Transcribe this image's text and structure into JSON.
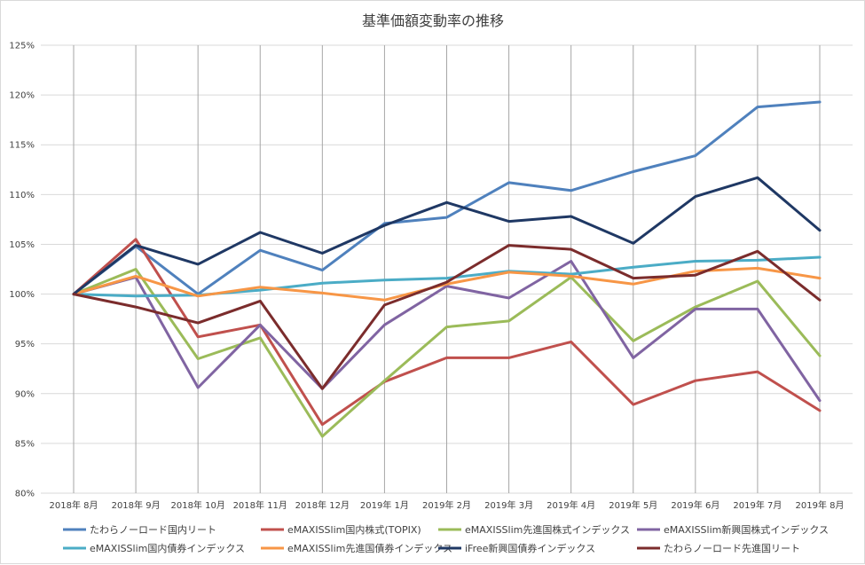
{
  "chart_data": {
    "type": "line",
    "title": "基準価額変動率の推移",
    "xlabel": "",
    "ylabel": "",
    "ylim": [
      80,
      125
    ],
    "y_ticks": [
      "80%",
      "85%",
      "90%",
      "95%",
      "100%",
      "105%",
      "110%",
      "115%",
      "120%",
      "125%"
    ],
    "categories": [
      "2018年 8月",
      "2018年 9月",
      "2018年 10月",
      "2018年 11月",
      "2018年 12月",
      "2019年 1月",
      "2019年 2月",
      "2019年 3月",
      "2019年 4月",
      "2019年 5月",
      "2019年 6月",
      "2019年 7月",
      "2019年 8月"
    ],
    "grid": "vertical and horizontal",
    "legend_position": "bottom",
    "series": [
      {
        "name": "たわらノーロード国内リート",
        "color": "#4f81bd",
        "values": [
          100,
          104.8,
          100.0,
          104.4,
          102.4,
          107.1,
          107.7,
          111.2,
          110.4,
          112.3,
          113.9,
          118.8,
          119.3
        ]
      },
      {
        "name": "eMAXISSlim国内株式(TOPIX)",
        "color": "#c0504d",
        "values": [
          100,
          105.5,
          95.7,
          96.9,
          86.9,
          91.2,
          93.6,
          93.6,
          95.2,
          88.9,
          91.3,
          92.2,
          88.3
        ]
      },
      {
        "name": "eMAXISSlim先進国株式インデックス",
        "color": "#9bbb59",
        "values": [
          100,
          102.5,
          93.5,
          95.6,
          85.7,
          91.3,
          96.7,
          97.3,
          101.7,
          95.3,
          98.7,
          101.3,
          93.8
        ]
      },
      {
        "name": "eMAXISSlim新興国株式インデックス",
        "color": "#8064a2",
        "values": [
          100,
          101.7,
          90.6,
          96.9,
          90.5,
          96.9,
          100.8,
          99.6,
          103.3,
          93.6,
          98.5,
          98.5,
          89.3
        ]
      },
      {
        "name": "eMAXISSlim国内債券インデックス",
        "color": "#4bacc6",
        "values": [
          100,
          99.8,
          99.9,
          100.4,
          101.1,
          101.4,
          101.6,
          102.3,
          102.0,
          102.7,
          103.3,
          103.4,
          103.7
        ]
      },
      {
        "name": "eMAXISSlim先進国債券インデックス",
        "color": "#f79646",
        "values": [
          100,
          101.8,
          99.8,
          100.7,
          100.1,
          99.4,
          101.0,
          102.2,
          101.8,
          101.0,
          102.3,
          102.6,
          101.6
        ]
      },
      {
        "name": "iFree新興国債券インデックス",
        "color": "#1f3864",
        "values": [
          100,
          104.9,
          103.0,
          106.2,
          104.1,
          106.9,
          109.2,
          107.3,
          107.8,
          105.1,
          109.8,
          111.7,
          106.4
        ]
      },
      {
        "name": "たわらノーロード先進国リート",
        "color": "#7b2c2c",
        "values": [
          100,
          98.7,
          97.1,
          99.3,
          90.5,
          98.9,
          101.2,
          104.9,
          104.5,
          101.6,
          101.9,
          104.3,
          99.4
        ]
      }
    ]
  }
}
